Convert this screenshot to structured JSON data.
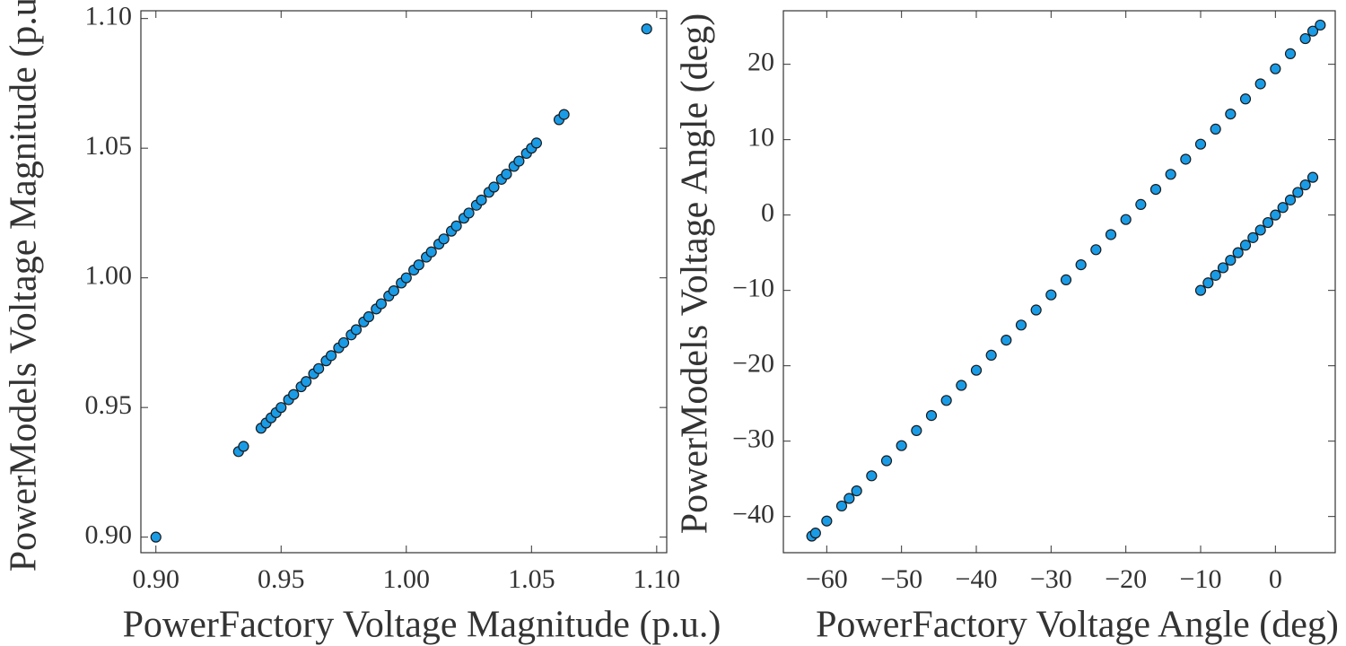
{
  "chart_data": [
    {
      "type": "scatter",
      "xlabel": "PowerFactory Voltage Magnitude (p.u.)",
      "ylabel": "PowerModels Voltage Magnitude (p.u.)",
      "color": "#1a9be6",
      "xlim": [
        0.894,
        1.104
      ],
      "ylim": [
        0.894,
        1.103
      ],
      "xticks": [
        {
          "value": 0.9,
          "label": "0.90"
        },
        0.95,
        {
          "value": 1,
          "label": "1.00"
        },
        1.05,
        {
          "value": 1.1,
          "label": "1.10"
        }
      ],
      "yticks": [
        {
          "value": 0.9,
          "label": "0.90"
        },
        0.95,
        {
          "value": 1,
          "label": "1.00"
        },
        1.05,
        {
          "value": 1.1,
          "label": "1.10"
        }
      ],
      "x": [
        0.9,
        0.933,
        0.935,
        0.942,
        0.944,
        0.946,
        0.948,
        0.95,
        0.953,
        0.955,
        0.958,
        0.96,
        0.963,
        0.965,
        0.968,
        0.97,
        0.973,
        0.975,
        0.978,
        0.98,
        0.983,
        0.985,
        0.988,
        0.99,
        0.993,
        0.995,
        0.998,
        1.0,
        1.003,
        1.005,
        1.008,
        1.01,
        1.013,
        1.015,
        1.018,
        1.02,
        1.023,
        1.025,
        1.028,
        1.03,
        1.033,
        1.035,
        1.038,
        1.04,
        1.043,
        1.045,
        1.048,
        1.05,
        1.052,
        1.061,
        1.063,
        1.096
      ],
      "values": [
        0.9,
        0.933,
        0.935,
        0.942,
        0.944,
        0.946,
        0.948,
        0.95,
        0.953,
        0.955,
        0.958,
        0.96,
        0.963,
        0.965,
        0.968,
        0.97,
        0.973,
        0.975,
        0.978,
        0.98,
        0.983,
        0.985,
        0.988,
        0.99,
        0.993,
        0.995,
        0.998,
        1.0,
        1.003,
        1.005,
        1.008,
        1.01,
        1.013,
        1.015,
        1.018,
        1.02,
        1.023,
        1.025,
        1.028,
        1.03,
        1.033,
        1.035,
        1.038,
        1.04,
        1.043,
        1.045,
        1.048,
        1.05,
        1.052,
        1.061,
        1.063,
        1.096
      ]
    },
    {
      "type": "scatter",
      "xlabel": "PowerFactory Voltage Angle (deg)",
      "ylabel": "PowerModels Voltage Angle (deg)",
      "color": "#1a9be6",
      "xlim": [
        -65.8,
        8.0
      ],
      "ylim": [
        -44.8,
        27.1
      ],
      "xticks": [
        {
          "value": -60,
          "label": "−60"
        },
        {
          "value": -50,
          "label": "−50"
        },
        {
          "value": -40,
          "label": "−40"
        },
        {
          "value": -30,
          "label": "−30"
        },
        {
          "value": -20,
          "label": "−20"
        },
        {
          "value": -10,
          "label": "−10"
        },
        0
      ],
      "yticks": [
        {
          "value": -40,
          "label": "−40"
        },
        {
          "value": -30,
          "label": "−30"
        },
        {
          "value": -20,
          "label": "−20"
        },
        {
          "value": -10,
          "label": "−10"
        },
        0,
        10,
        20
      ],
      "x": [
        -62,
        -61.5,
        -60,
        -58,
        -57,
        -56,
        -54,
        -52,
        -50,
        -48,
        -46,
        -44,
        -42,
        -40,
        -38,
        -36,
        -34,
        -32,
        -30,
        -28,
        -26,
        -24,
        -22,
        -20,
        -18,
        -16,
        -14,
        -12,
        -10,
        -8,
        -6,
        -4,
        -2,
        0,
        2,
        4,
        5,
        6,
        -10,
        -9,
        -8,
        -7,
        -6,
        -5,
        -4,
        -3,
        -2,
        -1,
        0,
        1,
        2,
        3,
        4,
        5
      ],
      "values": [
        -42.6,
        -42.2,
        -40.6,
        -38.6,
        -37.6,
        -36.6,
        -34.6,
        -32.6,
        -30.6,
        -28.6,
        -26.6,
        -24.6,
        -22.6,
        -20.6,
        -18.6,
        -16.6,
        -14.6,
        -12.6,
        -10.6,
        -8.6,
        -6.6,
        -4.6,
        -2.6,
        -0.6,
        1.4,
        3.4,
        5.4,
        7.4,
        9.4,
        11.4,
        13.4,
        15.4,
        17.4,
        19.4,
        21.4,
        23.4,
        24.4,
        25.2,
        -10,
        -9,
        -8,
        -7,
        -6,
        -5,
        -4,
        -3,
        -2,
        -1,
        0,
        1,
        2,
        3,
        4,
        5
      ]
    }
  ]
}
